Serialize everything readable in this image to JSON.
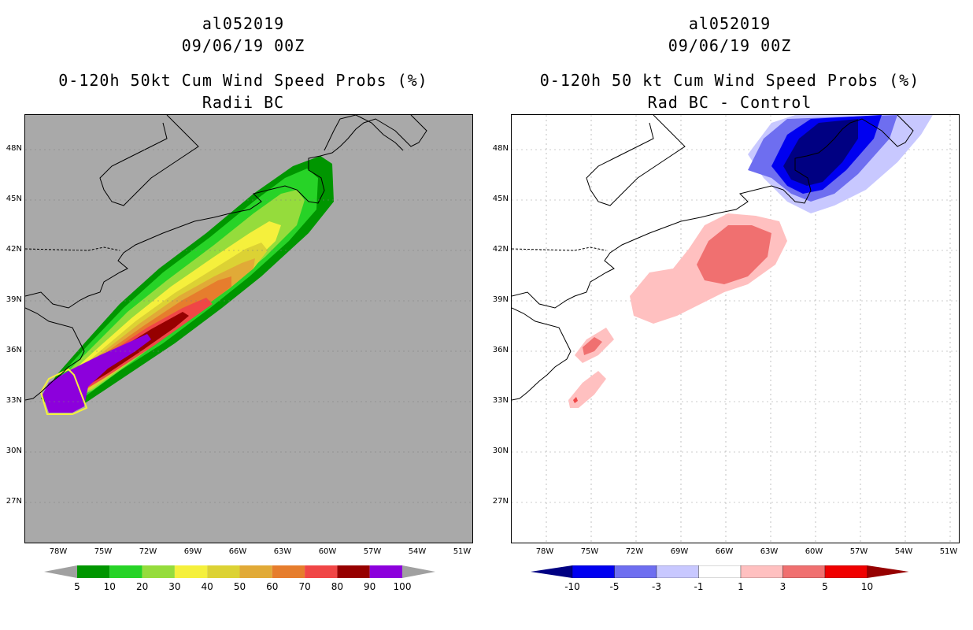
{
  "left_panel": {
    "storm_id": "al052019",
    "datetime": "09/06/19 00Z",
    "title": "0-120h 50kt Cum Wind Speed Probs (%)",
    "subtitle": "Radii BC",
    "background_color": "#a9a9a9",
    "colorbar": {
      "colors": [
        "#009600",
        "#27d327",
        "#95dc3c",
        "#f5f03c",
        "#dcd234",
        "#e1aa37",
        "#e67d2d",
        "#f04646",
        "#960000",
        "#8c00dc"
      ],
      "labels": [
        "5",
        "10",
        "20",
        "30",
        "40",
        "50",
        "60",
        "70",
        "80",
        "90",
        "100"
      ]
    }
  },
  "right_panel": {
    "storm_id": "al052019",
    "datetime": "09/06/19 00Z",
    "title": "0-120h 50 kt Cum Wind Speed Probs (%)",
    "subtitle": "Rad BC - Control",
    "background_color": "#ffffff",
    "colorbar": {
      "colors": [
        "#000082",
        "#0000f0",
        "#6e6ef0",
        "#c8c8ff",
        "#ffffff",
        "#ffc0c0",
        "#f07070",
        "#f00000",
        "#960000"
      ],
      "labels": [
        "-10",
        "-5",
        "-3",
        "-1",
        "1",
        "3",
        "5",
        "10"
      ]
    }
  },
  "axes": {
    "lat_labels": [
      "48N",
      "45N",
      "42N",
      "39N",
      "36N",
      "33N",
      "30N",
      "27N"
    ],
    "lon_labels": [
      "78W",
      "75W",
      "72W",
      "69W",
      "66W",
      "63W",
      "60W",
      "57W",
      "54W",
      "51W"
    ]
  }
}
